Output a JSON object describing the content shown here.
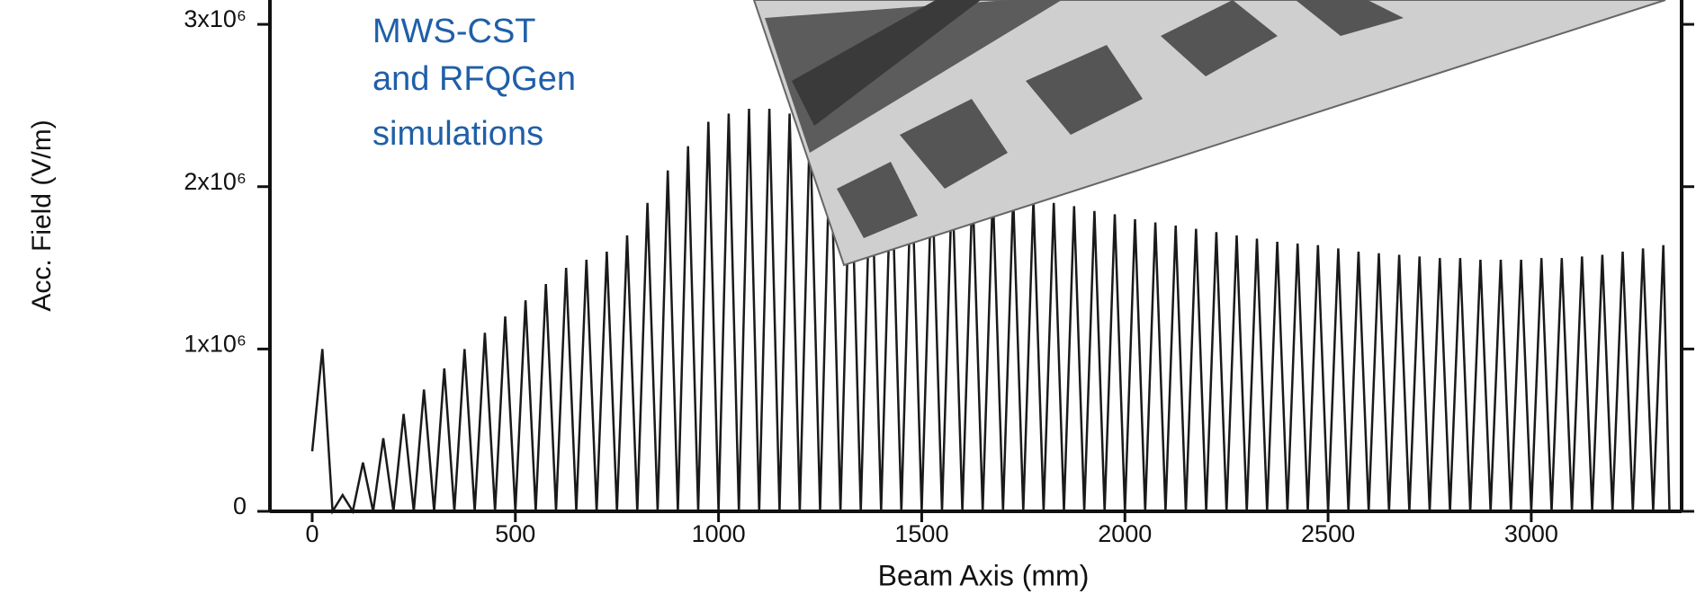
{
  "chart_data": {
    "type": "line",
    "annotations": [
      "MWS-CST",
      "and RFQGen",
      "simulations"
    ],
    "xlabel": "Beam Axis (mm)",
    "ylabel": "Acc. Field (V/m)",
    "x": [
      0,
      25,
      50,
      75,
      100,
      125,
      150,
      175,
      200,
      225,
      250,
      275,
      300,
      325,
      350,
      375,
      400,
      425,
      450,
      475,
      500,
      525,
      550,
      575,
      600,
      625,
      650,
      675,
      700,
      725,
      750,
      775,
      800,
      825,
      850,
      875,
      900,
      925,
      950,
      975,
      1000,
      1025,
      1050,
      1075,
      1100,
      1125,
      1150,
      1175,
      1200,
      1225,
      1250,
      1275,
      1300,
      1325,
      1350,
      1375,
      1400,
      1425,
      1450,
      1475,
      1500,
      1525,
      1550,
      1575,
      1600,
      1625,
      1650,
      1675,
      1700,
      1725,
      1750,
      1775,
      1800,
      1825,
      1850,
      1875,
      1900,
      1925,
      1950,
      1975,
      2000,
      2025,
      2050,
      2075,
      2100,
      2125,
      2150,
      2175,
      2200,
      2225,
      2250,
      2275,
      2300,
      2325,
      2350,
      2375,
      2400,
      2425,
      2450,
      2475,
      2500,
      2525,
      2550,
      2575,
      2600,
      2625,
      2650,
      2675,
      2700,
      2725,
      2750,
      2775,
      2800,
      2825,
      2850,
      2875,
      2900,
      2925,
      2950,
      2975,
      3000,
      3025,
      3050,
      3075,
      3100,
      3125,
      3150,
      3175,
      3200,
      3225,
      3250,
      3275,
      3300,
      3325,
      3340
    ],
    "series": [
      {
        "color": "#1a1a1a",
        "values": [
          370000.0,
          1000000.0,
          0,
          100000.0,
          0,
          300000.0,
          0,
          450000.0,
          0,
          600000.0,
          0,
          750000.0,
          0,
          880000.0,
          0,
          1000000.0,
          0,
          1100000.0,
          0,
          1200000.0,
          0,
          1300000.0,
          0,
          1400000.0,
          0,
          1500000.0,
          0,
          1550000.0,
          0,
          1600000.0,
          0,
          1700000.0,
          0,
          1900000.0,
          0,
          2100000.0,
          0,
          2250000.0,
          0,
          2400000.0,
          0,
          2450000.0,
          0,
          2480000.0,
          0,
          2480000.0,
          0,
          2450000.0,
          0,
          2400000.0,
          0,
          2350000.0,
          0,
          2300000.0,
          0,
          2250000.0,
          0,
          2200000.0,
          0,
          2150000.0,
          0,
          2100000.0,
          0,
          2050000.0,
          0,
          2000000.0,
          0,
          1970000.0,
          0,
          1940000.0,
          0,
          1920000.0,
          0,
          1900000.0,
          0,
          1880000.0,
          0,
          1850000.0,
          0,
          1830000.0,
          0,
          1800000.0,
          0,
          1780000.0,
          0,
          1760000.0,
          0,
          1740000.0,
          0,
          1720000.0,
          0,
          1700000.0,
          0,
          1680000.0,
          0,
          1660000.0,
          0,
          1650000.0,
          0,
          1640000.0,
          0,
          1620000.0,
          0,
          1600000.0,
          0,
          1590000.0,
          0,
          1580000.0,
          0,
          1570000.0,
          0,
          1560000.0,
          0,
          1560000.0,
          0,
          1550000.0,
          0,
          1550000.0,
          0,
          1550000.0,
          0,
          1560000.0,
          0,
          1560000.0,
          0,
          1570000.0,
          0,
          1580000.0,
          0,
          1600000.0,
          0,
          1620000.0,
          0,
          1640000.0,
          0
        ]
      }
    ],
    "xlim": [
      -104,
      3370
    ],
    "xticks": [
      0,
      500,
      1000,
      1500,
      2000,
      2500,
      3000
    ],
    "ylim": [
      0,
      3150000
    ],
    "yticks": [
      0,
      {
        "value": 1000000,
        "label": "1x10⁶"
      },
      {
        "value": 2000000,
        "label": "2x10⁶"
      },
      {
        "value": 3000000,
        "label": "3x10⁶"
      }
    ]
  }
}
